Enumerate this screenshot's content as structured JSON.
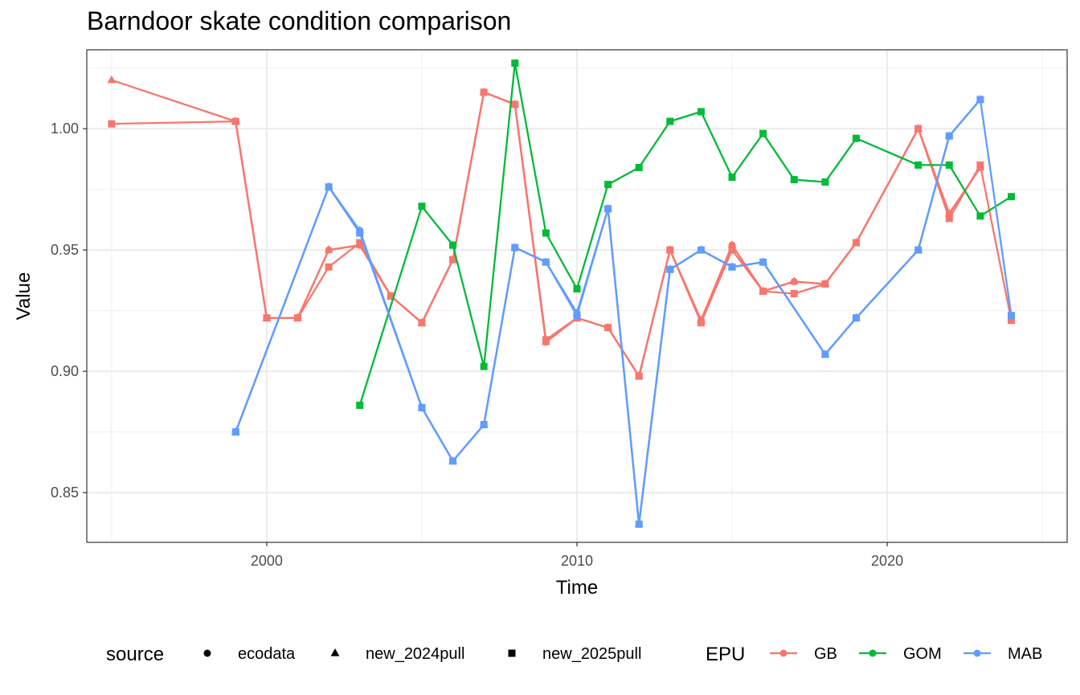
{
  "chart_data": {
    "type": "line",
    "title": "Barndoor skate condition comparison",
    "xlabel": "Time",
    "ylabel": "Value",
    "xlim": [
      1994.2,
      2025.8
    ],
    "ylim": [
      0.8295,
      1.0325
    ],
    "x_ticks": [
      2000,
      2010,
      2020
    ],
    "x_tick_labels": [
      "2000",
      "2010",
      "2020"
    ],
    "y_ticks": [
      0.85,
      0.9,
      0.95,
      1.0
    ],
    "y_tick_labels": [
      "0.85",
      "0.90",
      "0.95",
      "1.00"
    ],
    "grid": true,
    "legend_position": "bottom",
    "legends": {
      "source": {
        "title": "source",
        "items": [
          {
            "label": "ecodata",
            "shape": "circle"
          },
          {
            "label": "new_2024pull",
            "shape": "triangle"
          },
          {
            "label": "new_2025pull",
            "shape": "square"
          }
        ]
      },
      "epu": {
        "title": "EPU",
        "items": [
          {
            "label": "GB",
            "color": "#F8766D"
          },
          {
            "label": "GOM",
            "color": "#00BA38"
          },
          {
            "label": "MAB",
            "color": "#619CFF"
          }
        ]
      }
    },
    "series": [
      {
        "epu": "GB",
        "source": "ecodata",
        "color": "#F8766D",
        "shape": "circle",
        "x": [
          1999,
          2000,
          2001,
          2002,
          2003,
          2004,
          2005,
          2006,
          2007,
          2008,
          2009,
          2010,
          2011,
          2012,
          2013,
          2014,
          2015,
          2016,
          2017,
          2018,
          2019,
          2021,
          2022,
          2023
        ],
        "y": [
          1.003,
          0.922,
          0.922,
          0.95,
          0.952,
          0.931,
          0.92,
          0.946,
          1.015,
          1.01,
          0.912,
          0.922,
          0.918,
          0.898,
          0.95,
          0.921,
          0.952,
          0.933,
          0.937,
          0.936,
          0.953,
          1.0,
          0.965,
          0.984
        ]
      },
      {
        "epu": "GB",
        "source": "new_2024pull",
        "color": "#F8766D",
        "shape": "triangle",
        "x": [
          1995,
          1999,
          2000,
          2001,
          2002,
          2003,
          2004,
          2005,
          2006,
          2007,
          2008,
          2009,
          2010,
          2011,
          2012,
          2013,
          2014,
          2015,
          2016,
          2017,
          2018,
          2019,
          2021,
          2022,
          2023
        ],
        "y": [
          1.02,
          1.003,
          0.922,
          0.922,
          0.95,
          0.952,
          0.931,
          0.92,
          0.946,
          1.015,
          1.01,
          0.912,
          0.922,
          0.918,
          0.898,
          0.95,
          0.921,
          0.952,
          0.933,
          0.937,
          0.936,
          0.953,
          1.0,
          0.965,
          0.984
        ]
      },
      {
        "epu": "GB",
        "source": "new_2025pull",
        "color": "#F8766D",
        "shape": "square",
        "x": [
          1995,
          1999,
          2000,
          2001,
          2002,
          2003,
          2004,
          2005,
          2006,
          2007,
          2008,
          2009,
          2010,
          2011,
          2012,
          2013,
          2014,
          2015,
          2016,
          2017,
          2018,
          2019,
          2021,
          2022,
          2023,
          2024
        ],
        "y": [
          1.002,
          1.003,
          0.922,
          0.922,
          0.943,
          0.953,
          0.931,
          0.92,
          0.946,
          1.015,
          1.01,
          0.913,
          0.922,
          0.918,
          0.898,
          0.95,
          0.92,
          0.95,
          0.933,
          0.932,
          0.936,
          0.953,
          1.0,
          0.963,
          0.985,
          0.921
        ]
      },
      {
        "epu": "GOM",
        "source": "new_2025pull",
        "color": "#00BA38",
        "shape": "square",
        "x": [
          2003,
          2005,
          2006,
          2007,
          2008,
          2009,
          2010,
          2011,
          2012,
          2013,
          2014,
          2015,
          2016,
          2017,
          2018,
          2019,
          2021,
          2022,
          2023,
          2024
        ],
        "y": [
          0.886,
          0.968,
          0.952,
          0.902,
          1.027,
          0.957,
          0.934,
          0.977,
          0.984,
          1.003,
          1.007,
          0.98,
          0.998,
          0.979,
          0.978,
          0.996,
          0.985,
          0.985,
          0.964,
          0.972
        ]
      },
      {
        "epu": "MAB",
        "source": "ecodata",
        "color": "#619CFF",
        "shape": "circle",
        "x": [
          1999,
          2002,
          2003,
          2005,
          2006,
          2007,
          2008,
          2009,
          2010,
          2011,
          2012,
          2013,
          2014,
          2015,
          2016,
          2018,
          2019,
          2021,
          2022,
          2023
        ],
        "y": [
          0.875,
          0.976,
          0.958,
          0.885,
          0.863,
          0.878,
          0.951,
          0.945,
          0.924,
          0.967,
          0.837,
          0.942,
          0.95,
          0.943,
          0.945,
          0.907,
          0.922,
          0.95,
          0.997,
          1.012
        ]
      },
      {
        "epu": "MAB",
        "source": "new_2024pull",
        "color": "#619CFF",
        "shape": "triangle",
        "x": [
          1999,
          2002,
          2003,
          2005,
          2006,
          2007,
          2008,
          2009,
          2010,
          2011,
          2012,
          2013,
          2014,
          2015,
          2016,
          2018,
          2019,
          2021,
          2022,
          2023
        ],
        "y": [
          0.875,
          0.976,
          0.958,
          0.885,
          0.863,
          0.878,
          0.951,
          0.945,
          0.924,
          0.967,
          0.837,
          0.942,
          0.95,
          0.943,
          0.945,
          0.907,
          0.922,
          0.95,
          0.997,
          1.012
        ]
      },
      {
        "epu": "MAB",
        "source": "new_2025pull",
        "color": "#619CFF",
        "shape": "square",
        "x": [
          1999,
          2002,
          2003,
          2005,
          2006,
          2007,
          2008,
          2009,
          2010,
          2011,
          2012,
          2013,
          2014,
          2015,
          2016,
          2018,
          2019,
          2021,
          2022,
          2023,
          2024
        ],
        "y": [
          0.875,
          0.976,
          0.957,
          0.885,
          0.863,
          0.878,
          0.951,
          0.945,
          0.923,
          0.967,
          0.837,
          0.942,
          0.95,
          0.943,
          0.945,
          0.907,
          0.922,
          0.95,
          0.997,
          1.012,
          0.923
        ]
      }
    ]
  }
}
